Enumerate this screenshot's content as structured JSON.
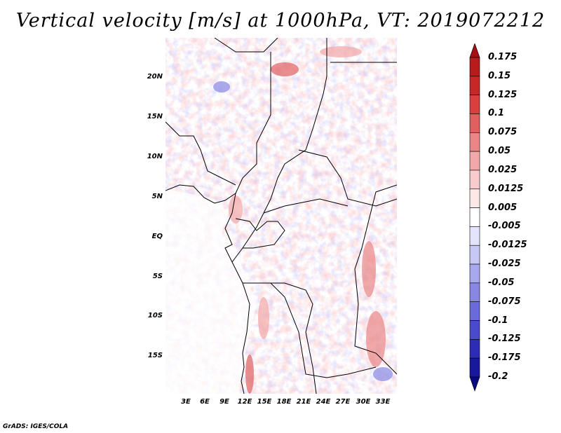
{
  "title": "Vertical velocity [m/s] at 1000hPa, VT: 2019072212",
  "credit": "GrADS: IGES/COLA",
  "map": {
    "lat_labels": [
      "20N",
      "15N",
      "10N",
      "5N",
      "EQ",
      "5S",
      "10S",
      "15S"
    ],
    "lon_labels": [
      "3E",
      "6E",
      "9E",
      "12E",
      "15E",
      "18E",
      "21E",
      "24E",
      "27E",
      "30E",
      "33E"
    ]
  },
  "colorbar": {
    "labels": [
      "0.175",
      "0.15",
      "0.125",
      "0.1",
      "0.075",
      "0.05",
      "0.025",
      "0.0125",
      "0.005",
      "-0.005",
      "-0.0125",
      "-0.025",
      "-0.05",
      "-0.075",
      "-0.1",
      "-0.125",
      "-0.175",
      "-0.2"
    ],
    "colors": [
      "#a50f15",
      "#b71c1c",
      "#c62828",
      "#d84040",
      "#e06060",
      "#ea8686",
      "#f2a8a8",
      "#f8cccc",
      "#fde8e8",
      "#ffffff",
      "#e4e4fc",
      "#c8c8f6",
      "#a8a8ee",
      "#8888e4",
      "#6a6ad8",
      "#4a4acc",
      "#2c2cb4",
      "#18189a",
      "#0a0a80"
    ]
  }
}
